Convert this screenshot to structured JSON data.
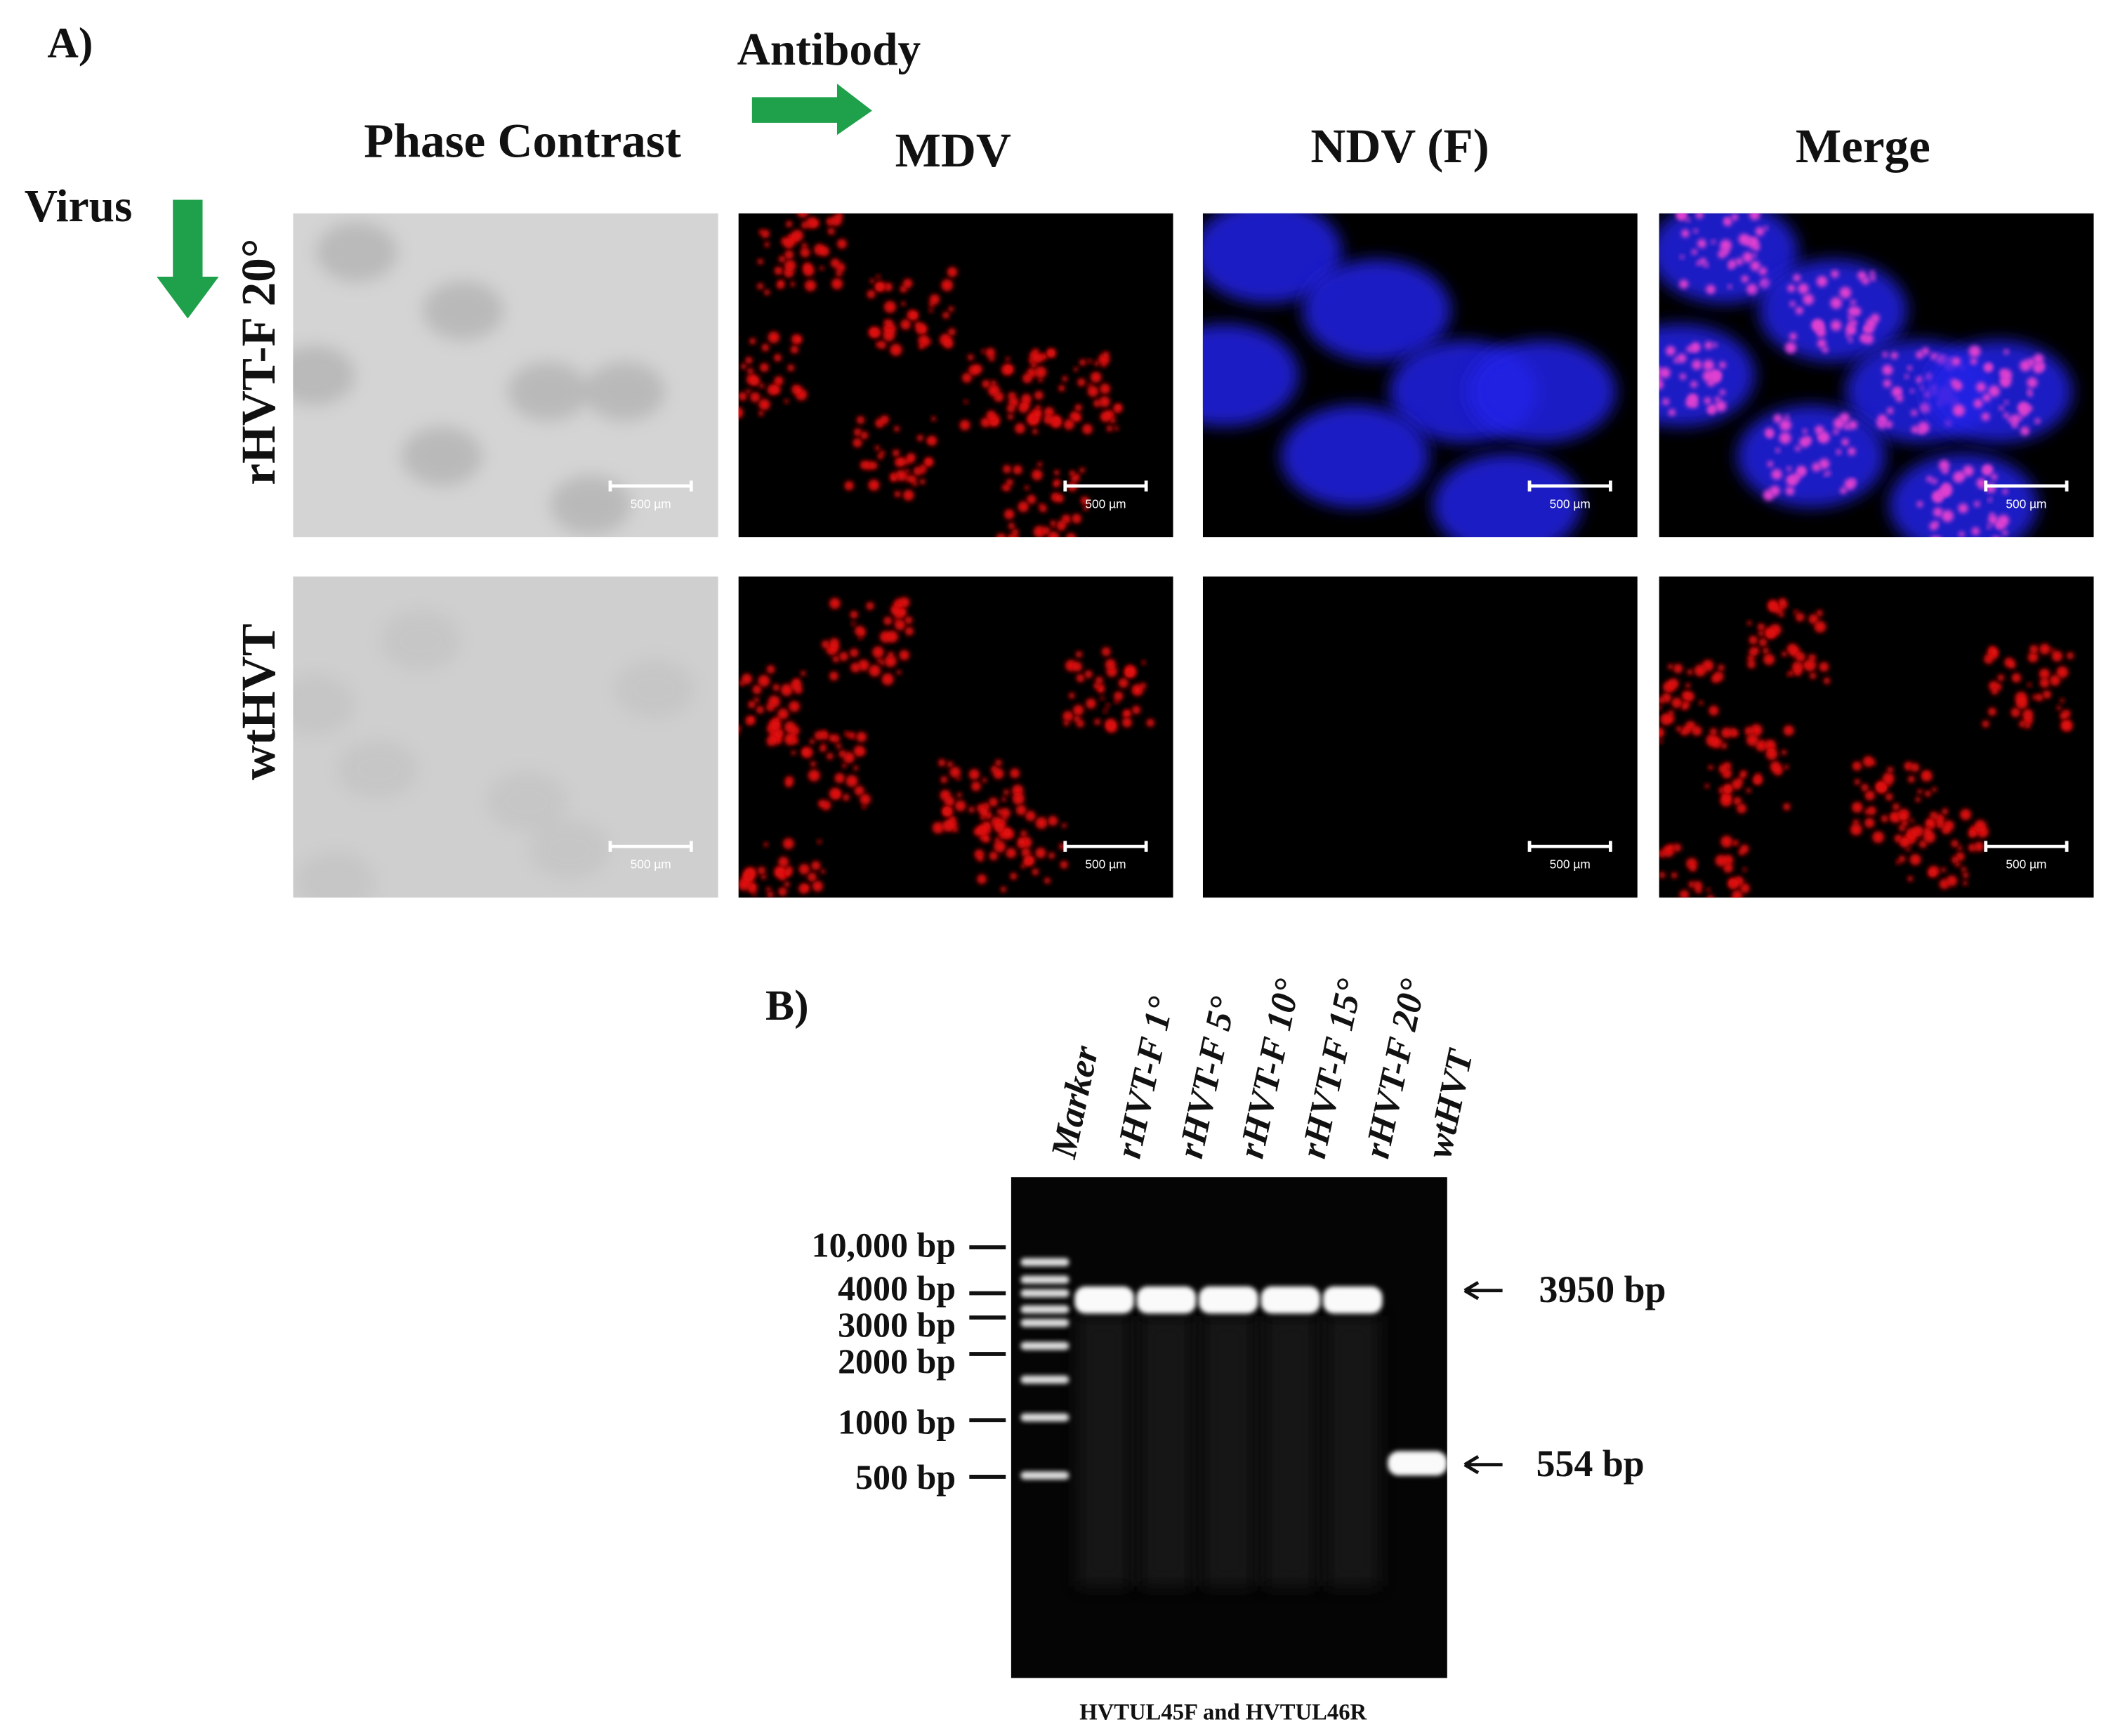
{
  "panel_a": {
    "label": "A)",
    "antibody_label": "Antibody",
    "virus_label": "Virus",
    "columns": [
      "Phase Contrast",
      "MDV",
      "NDV (F)",
      "Merge"
    ],
    "rows": [
      "rHVT-F 20°",
      "wtHVT"
    ],
    "scale_bar": "500 µm"
  },
  "panel_b": {
    "label": "B)",
    "lanes": [
      "Marker",
      "rHVT-F 1°",
      "rHVT-F 5°",
      "rHVT-F 10°",
      "rHVT-F 15°",
      "rHVT-F 20°",
      "wtHVT"
    ],
    "ladder": [
      "10,000 bp",
      "4000 bp",
      "3000 bp",
      "2000 bp",
      "1000 bp",
      "500 bp"
    ],
    "bands": [
      "3950 bp",
      "554 bp"
    ],
    "caption": "HVTUL45F and HVTUL46R"
  }
}
